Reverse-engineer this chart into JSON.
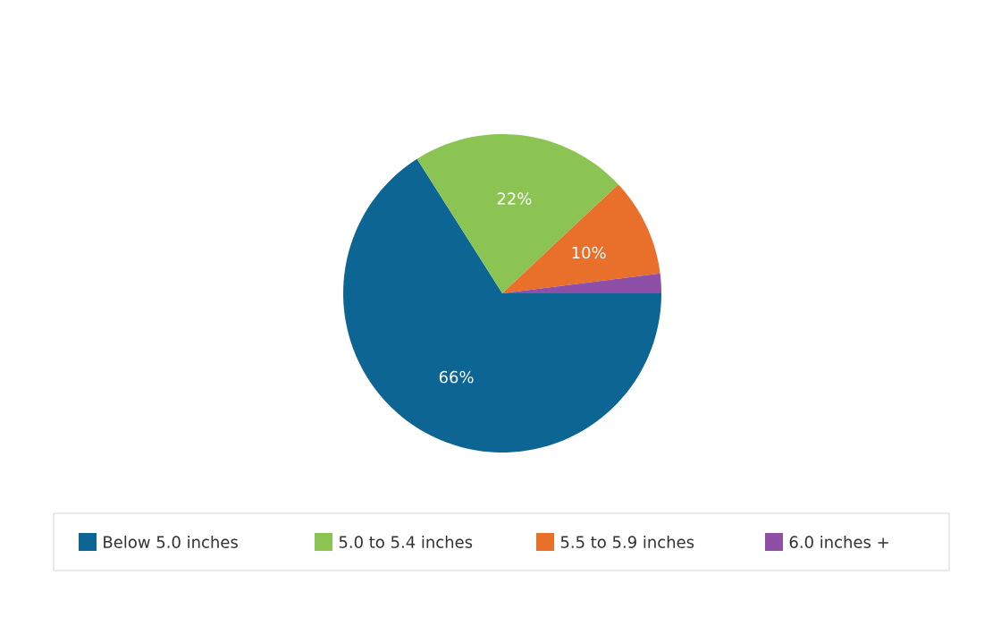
{
  "chart_data": {
    "type": "pie",
    "categories": [
      "Below 5.0 inches",
      "5.0 to 5.4 inches",
      "5.5 to 5.9 inches",
      "6.0 inches +"
    ],
    "values": [
      66,
      22,
      10,
      2
    ],
    "colors": [
      "#0d6593",
      "#8cc453",
      "#e8702a",
      "#8e4fa6"
    ],
    "value_labels": [
      "66%",
      "22%",
      "10%",
      null
    ],
    "legend": "bottom"
  }
}
